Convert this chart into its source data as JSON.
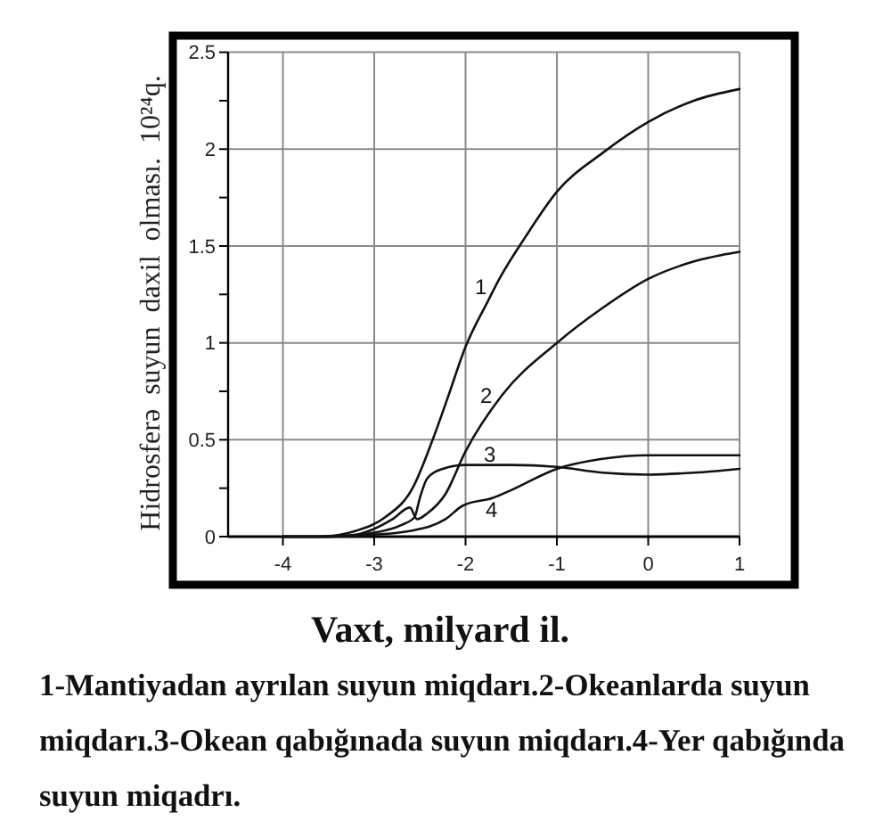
{
  "chart_data": {
    "type": "line",
    "xlabel": "Vaxt, milyard il.",
    "ylabel": "Hidrosferə suyun daxil olması. 10²⁴q.",
    "annotations": [
      "1-Mantiyadan ayrılan suyun miqdarı.2-Okeanlarda suyun miqdarı.3-Okean qabığınada suyun miqdarı.4-Yer qabığında suyun miqadrı."
    ],
    "xlim": [
      -4.6,
      1
    ],
    "ylim": [
      0,
      2.5
    ],
    "xticks": [
      -4,
      -3,
      -2,
      -1,
      0,
      1
    ],
    "yticks": [
      0,
      {
        "value": 0.25,
        "label": null
      },
      0.5,
      {
        "value": 0.75,
        "label": null
      },
      1,
      {
        "value": 1.25,
        "label": null
      },
      1.5,
      {
        "value": 1.75,
        "label": null
      },
      2,
      {
        "value": 2.25,
        "label": null
      },
      2.5
    ],
    "grid": true,
    "series": [
      {
        "name": "1",
        "color": "#111111",
        "x": [
          -4.0,
          -3.6,
          -3.2,
          -2.88,
          -2.58,
          -2.36,
          -2.2,
          -2.0,
          -1.75,
          -1.63,
          -1.34,
          -1.0,
          -0.5,
          0,
          0.5,
          1
        ],
        "values": [
          0,
          0,
          0.03,
          0.1,
          0.25,
          0.5,
          0.71,
          0.98,
          1.22,
          1.33,
          1.55,
          1.78,
          1.98,
          2.14,
          2.25,
          2.31
        ]
      },
      {
        "name": "2",
        "color": "#111111",
        "x": [
          -4.0,
          -3.5,
          -3.2,
          -3.0,
          -2.8,
          -2.61,
          -2.53,
          -2.42,
          -2.22,
          -2.0,
          -1.6,
          -1.0,
          -0.5,
          0,
          0.5,
          1
        ],
        "values": [
          0,
          0,
          0.01,
          0.04,
          0.09,
          0.15,
          0.09,
          0.12,
          0.22,
          0.44,
          0.73,
          1.0,
          1.18,
          1.33,
          1.42,
          1.47
        ]
      },
      {
        "name": "3",
        "color": "#111111",
        "x": [
          -4.0,
          -3.5,
          -3.0,
          -2.7,
          -2.56,
          -2.5,
          -2.42,
          -2.25,
          -2.0,
          -1.5,
          -1.0,
          -0.5,
          0,
          0.5,
          1
        ],
        "values": [
          0,
          0,
          0.02,
          0.06,
          0.1,
          0.2,
          0.3,
          0.35,
          0.37,
          0.37,
          0.36,
          0.33,
          0.32,
          0.33,
          0.35
        ]
      },
      {
        "name": "4",
        "color": "#111111",
        "x": [
          -4.0,
          -3.5,
          -3.0,
          -2.6,
          -2.22,
          -2.03,
          -1.7,
          -1.5,
          -1.0,
          -0.52,
          0,
          0.5,
          1
        ],
        "values": [
          0,
          0,
          0.01,
          0.03,
          0.09,
          0.16,
          0.2,
          0.24,
          0.35,
          0.4,
          0.42,
          0.42,
          0.42
        ]
      }
    ]
  }
}
